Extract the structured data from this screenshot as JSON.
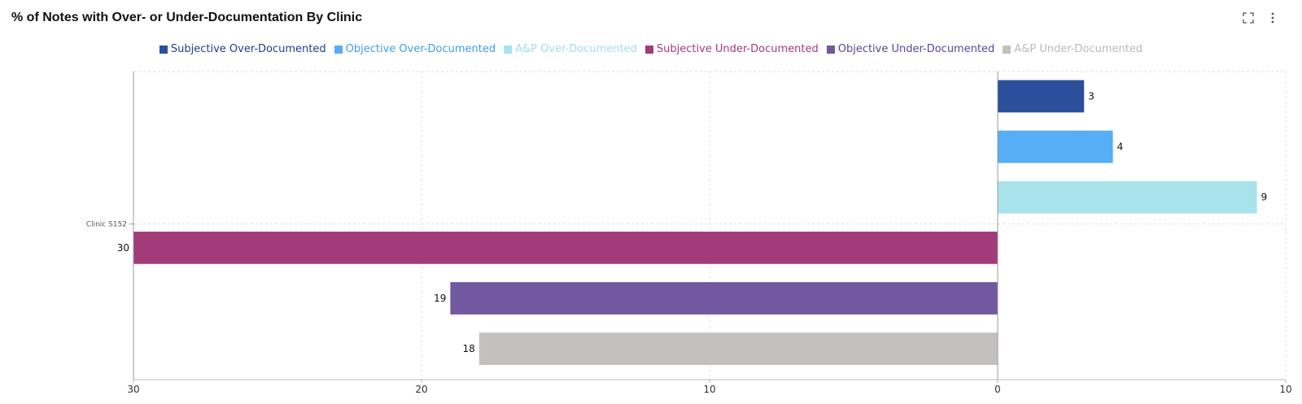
{
  "header": {
    "title": "% of Notes with Over- or Under-Documentation By Clinic",
    "expand_icon": "expand-icon",
    "menu_icon": "kebab-menu-icon"
  },
  "chart_data": {
    "type": "bar",
    "orientation": "horizontal",
    "title": "% of Notes with Over- or Under-Documentation By Clinic",
    "categories": [
      "Clinic S152"
    ],
    "xlim": [
      -30,
      10
    ],
    "x_ticks": [
      -30,
      -20,
      -10,
      0,
      10
    ],
    "x_tick_labels": [
      "30",
      "20",
      "10",
      "0",
      "10"
    ],
    "legend_position": "top-center",
    "grid": true,
    "series": [
      {
        "name": "Subjective Over-Documented",
        "color": "#2b4f9a",
        "values": [
          3
        ],
        "label": "3"
      },
      {
        "name": "Objective Over-Documented",
        "color": "#55aef6",
        "values": [
          4
        ],
        "label": "4"
      },
      {
        "name": "A&P Over-Documented",
        "color": "#a8e2eb",
        "values": [
          9
        ],
        "label": "9"
      },
      {
        "name": "Subjective Under-Documented",
        "color": "#a33b79",
        "values": [
          -30
        ],
        "label": "30"
      },
      {
        "name": "Objective Under-Documented",
        "color": "#71589f",
        "values": [
          -19
        ],
        "label": "19"
      },
      {
        "name": "A&P Under-Documented",
        "color": "#c5c0c0",
        "values": [
          -18
        ],
        "label": "18"
      }
    ]
  }
}
